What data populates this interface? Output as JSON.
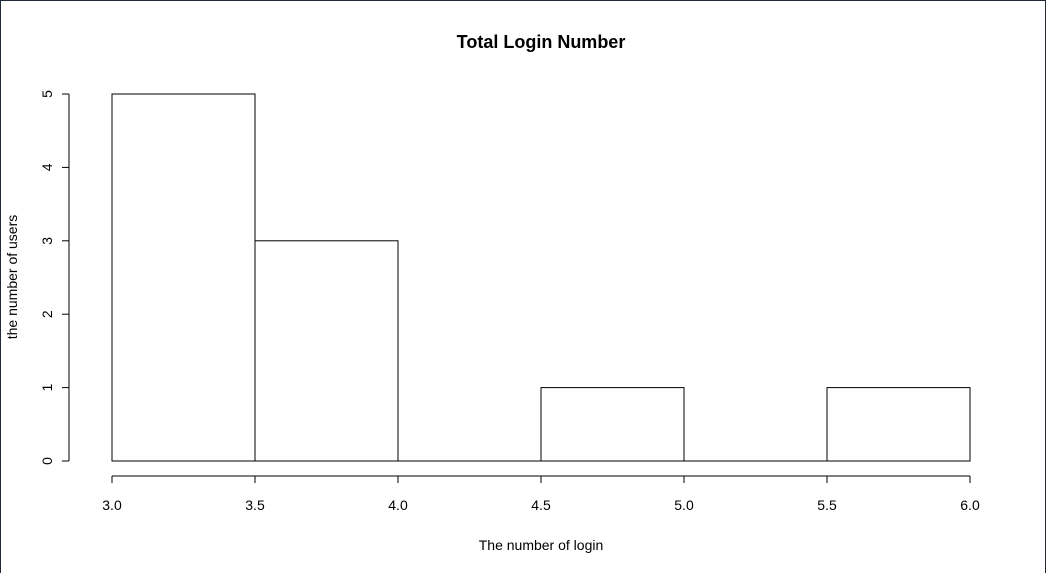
{
  "chart_data": {
    "type": "bar",
    "title": "Total Login Number",
    "xlabel": "The number of login",
    "ylabel": "the number of users",
    "bins": [
      {
        "start": 3.0,
        "end": 3.5,
        "count": 5
      },
      {
        "start": 3.5,
        "end": 4.0,
        "count": 3
      },
      {
        "start": 4.0,
        "end": 4.5,
        "count": 0
      },
      {
        "start": 4.5,
        "end": 5.0,
        "count": 1
      },
      {
        "start": 5.0,
        "end": 5.5,
        "count": 0
      },
      {
        "start": 5.5,
        "end": 6.0,
        "count": 1
      }
    ],
    "xlim": [
      3.0,
      6.0
    ],
    "ylim": [
      0,
      5
    ],
    "x_ticks": [
      "3.0",
      "3.5",
      "4.0",
      "4.5",
      "5.0",
      "5.5",
      "6.0"
    ],
    "y_ticks": [
      "0",
      "1",
      "2",
      "3",
      "4",
      "5"
    ],
    "grid": false,
    "bar_fill": "#ffffff",
    "bar_stroke": "#000000"
  }
}
